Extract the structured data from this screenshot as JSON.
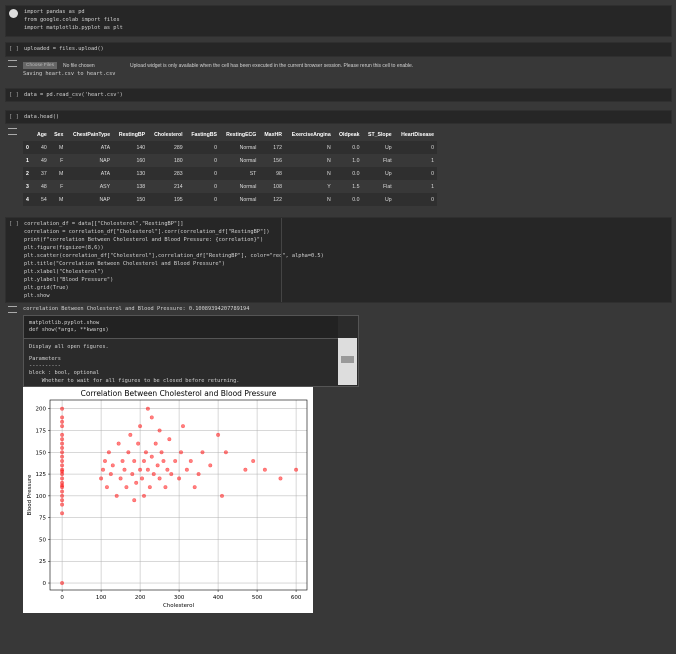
{
  "cells": [
    {
      "code": [
        "import pandas as pd",
        "from google.colab import files",
        "import matplotlib.pyplot as plt"
      ]
    },
    {
      "prompt": "[ ]",
      "code": [
        "uploaded = files.upload()"
      ]
    },
    {
      "prompt": "[ ]",
      "code": [
        "data = pd.read_csv('heart.csv')"
      ]
    },
    {
      "prompt": "[ ]",
      "code": [
        "data.head()"
      ]
    },
    {
      "prompt": "[ ]",
      "code": [
        "correlation_df = data[[\"Cholesterol\",\"RestingBP\"]]",
        "correlation = correlation_df[\"Cholesterol\"].corr(correlation_df[\"RestingBP\"])",
        "print(f\"correlation Between Cholesterol and Blood Pressure: {correlation}\")",
        "plt.figure(figsize=(8,6))",
        "plt.scatter(correlation_df[\"Cholesterol\"],correlation_df[\"RestingBP\"], color=\"red\", alpha=0.5)",
        "plt.title(\"Correlation Between Cholesterol and Blood Pressure\")",
        "plt.xlabel(\"Cholesterol\")",
        "plt.ylabel(\"Blood Pressure\")",
        "plt.grid(True)",
        "plt.show"
      ]
    }
  ],
  "upload": {
    "button": "Choose Files",
    "status": "No file chosen",
    "notice": "Upload widget is only available when the cell has been executed in the current browser session. Please rerun this cell to enable.",
    "log": "Saving heart.csv to heart.csv"
  },
  "table": {
    "columns": [
      "Age",
      "Sex",
      "ChestPainType",
      "RestingBP",
      "Cholesterol",
      "FastingBS",
      "RestingECG",
      "MaxHR",
      "ExerciseAngina",
      "Oldpeak",
      "ST_Slope",
      "HeartDisease"
    ],
    "index": [
      "0",
      "1",
      "2",
      "3",
      "4"
    ],
    "rows": [
      [
        "40",
        "M",
        "ATA",
        "140",
        "289",
        "0",
        "Normal",
        "172",
        "N",
        "0.0",
        "Up",
        "0"
      ],
      [
        "49",
        "F",
        "NAP",
        "160",
        "180",
        "0",
        "Normal",
        "156",
        "N",
        "1.0",
        "Flat",
        "1"
      ],
      [
        "37",
        "M",
        "ATA",
        "130",
        "283",
        "0",
        "ST",
        "98",
        "N",
        "0.0",
        "Up",
        "0"
      ],
      [
        "48",
        "F",
        "ASY",
        "138",
        "214",
        "0",
        "Normal",
        "108",
        "Y",
        "1.5",
        "Flat",
        "1"
      ],
      [
        "54",
        "M",
        "NAP",
        "150",
        "195",
        "0",
        "Normal",
        "122",
        "N",
        "0.0",
        "Up",
        "0"
      ]
    ]
  },
  "print_output": "correlation Between Cholesterol and Blood Pressure: 0.10089394207789194",
  "docstring": {
    "name": "matplotlib.pyplot.show",
    "signature": "def show(*args, **kwargs)",
    "body": [
      "Display all open figures.",
      "Parameters",
      "----------",
      "block : bool, optional",
      "    Whether to wait for all figures to be closed before returning."
    ]
  },
  "chart_data": {
    "type": "scatter",
    "title": "Correlation Between Cholesterol and Blood Pressure",
    "xlabel": "Cholesterol",
    "ylabel": "Blood Pressure",
    "color": "#ff0000",
    "alpha": 0.5,
    "grid": true,
    "xlim": [
      -31,
      628
    ],
    "xticks": [
      0,
      100,
      200,
      300,
      400,
      500,
      600
    ],
    "ylim": [
      -8,
      210
    ],
    "yticks": [
      0,
      25,
      50,
      75,
      100,
      125,
      150,
      175,
      200
    ],
    "x": [
      0,
      0,
      0,
      0,
      0,
      0,
      0,
      0,
      0,
      0,
      0,
      0,
      0,
      0,
      0,
      0,
      0,
      0,
      0,
      0,
      0,
      0,
      0,
      0,
      0,
      100,
      105,
      110,
      115,
      120,
      125,
      130,
      140,
      145,
      150,
      155,
      160,
      165,
      170,
      175,
      180,
      185,
      190,
      195,
      200,
      200,
      205,
      210,
      210,
      215,
      220,
      220,
      225,
      230,
      235,
      240,
      245,
      250,
      255,
      260,
      265,
      270,
      275,
      280,
      290,
      300,
      305,
      310,
      320,
      330,
      340,
      350,
      360,
      380,
      400,
      410,
      420,
      470,
      490,
      520,
      560,
      600,
      230,
      185,
      250
    ],
    "y": [
      80,
      90,
      95,
      100,
      105,
      110,
      112,
      115,
      120,
      125,
      128,
      130,
      135,
      140,
      145,
      150,
      155,
      160,
      165,
      170,
      180,
      185,
      190,
      200,
      0,
      120,
      130,
      140,
      110,
      150,
      125,
      135,
      100,
      160,
      120,
      140,
      130,
      110,
      150,
      170,
      125,
      140,
      115,
      160,
      130,
      180,
      120,
      140,
      100,
      150,
      130,
      200,
      110,
      145,
      125,
      160,
      135,
      120,
      150,
      140,
      110,
      130,
      165,
      125,
      140,
      120,
      150,
      180,
      130,
      140,
      110,
      125,
      150,
      135,
      170,
      100,
      150,
      130,
      140,
      130,
      120,
      130,
      190,
      95,
      175
    ]
  }
}
